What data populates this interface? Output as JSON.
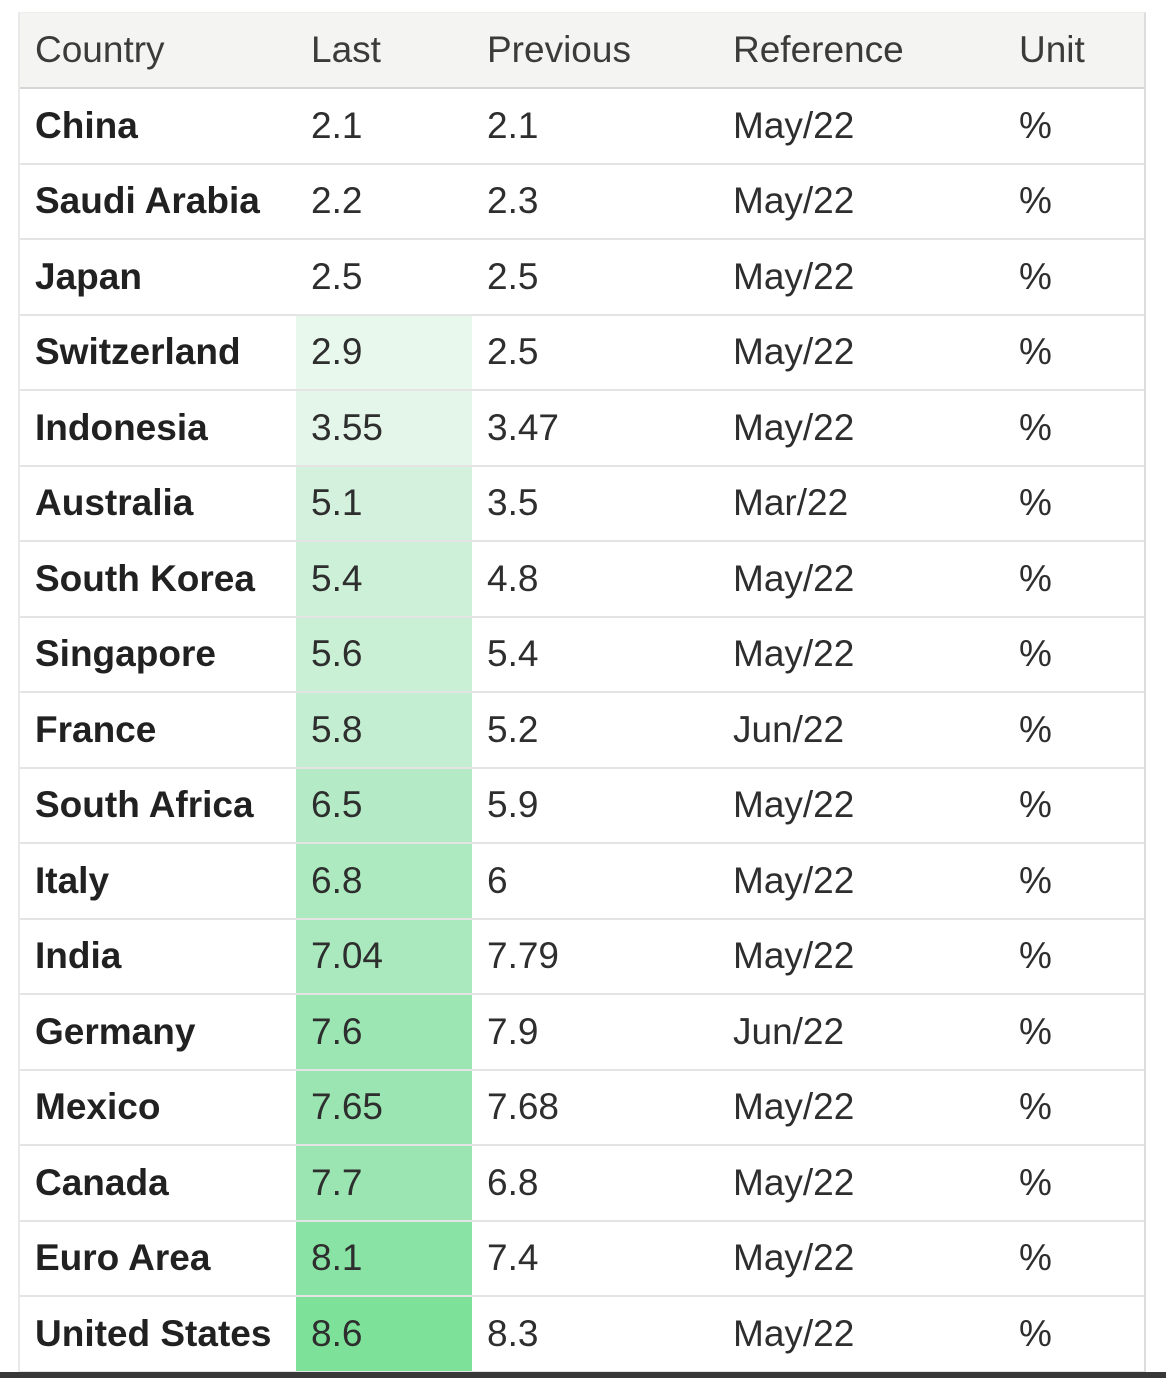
{
  "table": {
    "columns": [
      {
        "key": "country",
        "label": "Country"
      },
      {
        "key": "last",
        "label": "Last"
      },
      {
        "key": "previous",
        "label": "Previous"
      },
      {
        "key": "reference",
        "label": "Reference"
      },
      {
        "key": "unit",
        "label": "Unit"
      }
    ],
    "rows": [
      {
        "country": "China",
        "last": "2.1",
        "previous": "2.1",
        "reference": "May/22",
        "unit": "%",
        "last_bg": ""
      },
      {
        "country": "Saudi Arabia",
        "last": "2.2",
        "previous": "2.3",
        "reference": "May/22",
        "unit": "%",
        "last_bg": ""
      },
      {
        "country": "Japan",
        "last": "2.5",
        "previous": "2.5",
        "reference": "May/22",
        "unit": "%",
        "last_bg": ""
      },
      {
        "country": "Switzerland",
        "last": "2.9",
        "previous": "2.5",
        "reference": "May/22",
        "unit": "%",
        "last_bg": "#e9f8ed"
      },
      {
        "country": "Indonesia",
        "last": "3.55",
        "previous": "3.47",
        "reference": "May/22",
        "unit": "%",
        "last_bg": "#e4f6ea"
      },
      {
        "country": "Australia",
        "last": "5.1",
        "previous": "3.5",
        "reference": "Mar/22",
        "unit": "%",
        "last_bg": "#d3f1dd"
      },
      {
        "country": "South Korea",
        "last": "5.4",
        "previous": "4.8",
        "reference": "May/22",
        "unit": "%",
        "last_bg": "#cdf0d8"
      },
      {
        "country": "Singapore",
        "last": "5.6",
        "previous": "5.4",
        "reference": "May/22",
        "unit": "%",
        "last_bg": "#c9efd5"
      },
      {
        "country": "France",
        "last": "5.8",
        "previous": "5.2",
        "reference": "Jun/22",
        "unit": "%",
        "last_bg": "#c3eed1"
      },
      {
        "country": "South Africa",
        "last": "6.5",
        "previous": "5.9",
        "reference": "May/22",
        "unit": "%",
        "last_bg": "#b4ebc6"
      },
      {
        "country": "Italy",
        "last": "6.8",
        "previous": "6",
        "reference": "May/22",
        "unit": "%",
        "last_bg": "#adeac0"
      },
      {
        "country": "India",
        "last": "7.04",
        "previous": "7.79",
        "reference": "May/22",
        "unit": "%",
        "last_bg": "#a9e9bd"
      },
      {
        "country": "Germany",
        "last": "7.6",
        "previous": "7.9",
        "reference": "Jun/22",
        "unit": "%",
        "last_bg": "#9ce6b3"
      },
      {
        "country": "Mexico",
        "last": "7.65",
        "previous": "7.68",
        "reference": "May/22",
        "unit": "%",
        "last_bg": "#9be5b2"
      },
      {
        "country": "Canada",
        "last": "7.7",
        "previous": "6.8",
        "reference": "May/22",
        "unit": "%",
        "last_bg": "#9ae5b1"
      },
      {
        "country": "Euro Area",
        "last": "8.1",
        "previous": "7.4",
        "reference": "May/22",
        "unit": "%",
        "last_bg": "#89e3a5"
      },
      {
        "country": "United States",
        "last": "8.6",
        "previous": "8.3",
        "reference": "May/22",
        "unit": "%",
        "last_bg": "#7de19a"
      }
    ]
  },
  "colors": {
    "header_bg": "#f4f4f3",
    "row_border": "#e4e4e4",
    "header_border": "#d6d6d6",
    "country_text": "#212121",
    "value_text": "#2e2e2e",
    "heatmap_min": "#e9f8ed",
    "heatmap_max": "#7de19a",
    "bottom_bar": "#383838"
  }
}
